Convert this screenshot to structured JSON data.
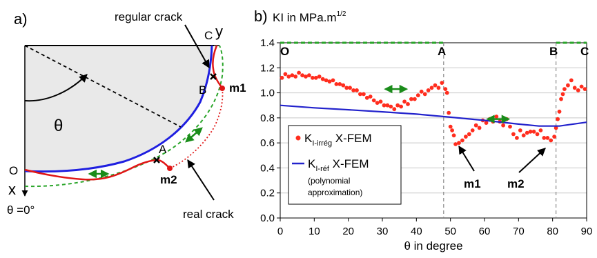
{
  "panel_a": {
    "label": "a)",
    "axis_x": "x",
    "axis_y": "y",
    "point_o": "O",
    "point_c": "C",
    "point_a": "A",
    "point_b": "B",
    "theta": "θ",
    "theta_zero": "θ =0°",
    "m1": "m1",
    "m2": "m2",
    "regular_crack": "regular crack",
    "real_crack": "real crack"
  },
  "panel_b": {
    "label": "b)",
    "title": "KI in MPa.m",
    "title_sup": "1/2",
    "marker_o": "O",
    "marker_a": "A",
    "marker_b": "B",
    "marker_c": "C",
    "m1": "m1",
    "m2": "m2",
    "legend": {
      "irreg_k": "K",
      "irreg_sub": "I-irrég",
      "irreg_tail": " X-FEM",
      "ref_k": "K",
      "ref_sub": "I-réf",
      "ref_tail": " X-FEM",
      "ref_note1": "(polynomial",
      "ref_note2": "approximation)"
    }
  },
  "chart_data": {
    "type": "scatter",
    "xlabel": "θ in degree",
    "xlim": [
      0,
      90
    ],
    "ylim": [
      0,
      1.4
    ],
    "x_ticks": [
      0,
      10,
      20,
      30,
      40,
      50,
      60,
      70,
      80,
      90
    ],
    "y_ticks": [
      "0.0",
      "0.2",
      "0.4",
      "0.6",
      "0.8",
      "1.0",
      "1.2",
      "1.4"
    ],
    "vlines": [
      48,
      81
    ],
    "arrows": [
      [
        34,
        1.03
      ],
      [
        64,
        0.79
      ]
    ],
    "green_lines": [
      [
        0,
        48,
        1.4
      ],
      [
        81,
        90,
        1.4
      ]
    ],
    "series": [
      {
        "name": "KI-irrég X-FEM",
        "color": "#ff2d1e",
        "kind": "points",
        "points": [
          [
            0.5,
            1.12
          ],
          [
            1.5,
            1.15
          ],
          [
            2.5,
            1.13
          ],
          [
            3.5,
            1.14
          ],
          [
            4.5,
            1.13
          ],
          [
            5.5,
            1.16
          ],
          [
            6.5,
            1.14
          ],
          [
            7.5,
            1.13
          ],
          [
            8.5,
            1.14
          ],
          [
            9.5,
            1.12
          ],
          [
            10.5,
            1.12
          ],
          [
            11.5,
            1.13
          ],
          [
            12.5,
            1.11
          ],
          [
            13.5,
            1.1
          ],
          [
            14.5,
            1.09
          ],
          [
            15.5,
            1.1
          ],
          [
            16.5,
            1.07
          ],
          [
            17.5,
            1.07
          ],
          [
            18.5,
            1.06
          ],
          [
            19.5,
            1.04
          ],
          [
            20.5,
            1.04
          ],
          [
            21.5,
            1.02
          ],
          [
            22.5,
            1.02
          ],
          [
            23.5,
            0.99
          ],
          [
            24.5,
            0.99
          ],
          [
            25.5,
            0.96
          ],
          [
            26.5,
            0.97
          ],
          [
            27.5,
            0.94
          ],
          [
            28.5,
            0.92
          ],
          [
            29.5,
            0.93
          ],
          [
            30.5,
            0.9
          ],
          [
            31.5,
            0.9
          ],
          [
            32.5,
            0.89
          ],
          [
            33.5,
            0.87
          ],
          [
            34.5,
            0.9
          ],
          [
            35.5,
            0.89
          ],
          [
            36.5,
            0.93
          ],
          [
            37.5,
            0.91
          ],
          [
            38.5,
            0.95
          ],
          [
            39.5,
            0.95
          ],
          [
            40.5,
            0.98
          ],
          [
            41.5,
            1.01
          ],
          [
            42.5,
            0.99
          ],
          [
            43.5,
            1.02
          ],
          [
            44.5,
            1.04
          ],
          [
            45.5,
            1.06
          ],
          [
            46.5,
            1.04
          ],
          [
            47.5,
            1.08
          ],
          [
            48.5,
            1.03
          ],
          [
            49,
            1.0
          ],
          [
            49.5,
            0.84
          ],
          [
            50,
            0.73
          ],
          [
            50.5,
            0.7
          ],
          [
            51,
            0.66
          ],
          [
            51.5,
            0.59
          ],
          [
            52.5,
            0.6
          ],
          [
            53.5,
            0.62
          ],
          [
            54.5,
            0.65
          ],
          [
            55.5,
            0.67
          ],
          [
            56.5,
            0.7
          ],
          [
            57.5,
            0.74
          ],
          [
            58.5,
            0.72
          ],
          [
            59.5,
            0.78
          ],
          [
            60.5,
            0.76
          ],
          [
            61.5,
            0.79
          ],
          [
            62.5,
            0.77
          ],
          [
            63.5,
            0.81
          ],
          [
            64.5,
            0.77
          ],
          [
            65.5,
            0.74
          ],
          [
            66.5,
            0.79
          ],
          [
            67.5,
            0.73
          ],
          [
            68.5,
            0.67
          ],
          [
            69.5,
            0.64
          ],
          [
            70.5,
            0.7
          ],
          [
            71.5,
            0.66
          ],
          [
            72.5,
            0.68
          ],
          [
            73.5,
            0.69
          ],
          [
            74.5,
            0.69
          ],
          [
            75.5,
            0.67
          ],
          [
            76.5,
            0.7
          ],
          [
            77.5,
            0.64
          ],
          [
            78.5,
            0.64
          ],
          [
            79.5,
            0.62
          ],
          [
            80.5,
            0.65
          ],
          [
            81,
            0.72
          ],
          [
            81.5,
            0.79
          ],
          [
            82,
            0.85
          ],
          [
            82.5,
            0.95
          ],
          [
            83,
            0.99
          ],
          [
            83.5,
            1.03
          ],
          [
            84.5,
            1.06
          ],
          [
            85.5,
            1.1
          ],
          [
            86.5,
            1.04
          ],
          [
            87.5,
            1.02
          ],
          [
            88.5,
            1.05
          ],
          [
            89.5,
            1.03
          ]
        ]
      },
      {
        "name": "KI-réf X-FEM",
        "color": "#2222cc",
        "kind": "line",
        "points": [
          [
            0,
            0.9
          ],
          [
            10,
            0.88
          ],
          [
            20,
            0.865
          ],
          [
            30,
            0.848
          ],
          [
            40,
            0.83
          ],
          [
            50,
            0.805
          ],
          [
            60,
            0.78
          ],
          [
            70,
            0.75
          ],
          [
            76,
            0.735
          ],
          [
            82,
            0.735
          ],
          [
            90,
            0.765
          ]
        ]
      }
    ]
  }
}
